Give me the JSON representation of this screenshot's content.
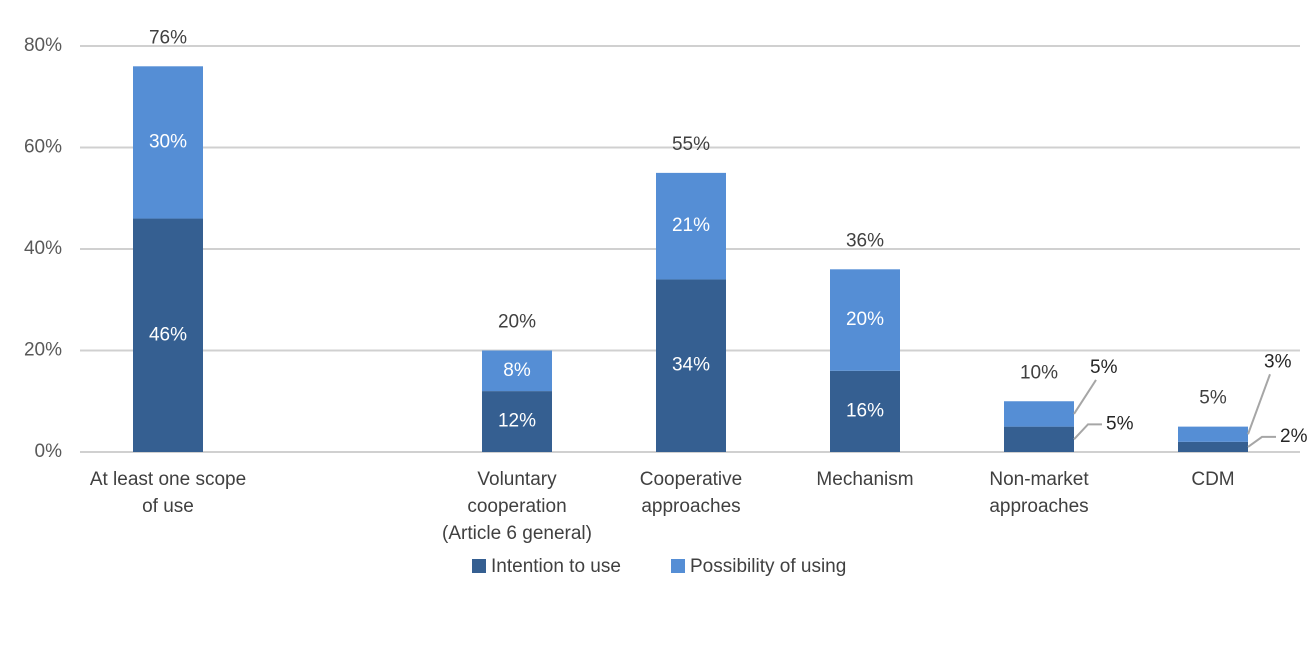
{
  "chart_data": {
    "type": "bar",
    "stacked": true,
    "categories": [
      [
        "At least one scope",
        "of use"
      ],
      [
        "Voluntary",
        "cooperation",
        "(Article 6 general)"
      ],
      [
        "Cooperative",
        "approaches"
      ],
      [
        "Mechanism"
      ],
      [
        "Non-market",
        "approaches"
      ],
      [
        "CDM"
      ]
    ],
    "series": [
      {
        "name": "Intention to use",
        "color": "#355F91",
        "values": [
          46,
          12,
          34,
          16,
          5,
          2
        ],
        "labels": [
          "46%",
          "12%",
          "34%",
          "16%",
          "5%",
          "2%"
        ]
      },
      {
        "name": "Possibility of using",
        "color": "#558ED5",
        "values": [
          30,
          8,
          21,
          20,
          5,
          3
        ],
        "labels": [
          "30%",
          "8%",
          "21%",
          "20%",
          "5%",
          "3%"
        ]
      }
    ],
    "totals": [
      "76%",
      "20%",
      "55%",
      "36%",
      "10%",
      "5%"
    ],
    "ylim": [
      0,
      80
    ],
    "yticks": [
      0,
      20,
      40,
      60,
      80
    ],
    "ytick_labels": [
      "0%",
      "20%",
      "40%",
      "60%",
      "80%"
    ],
    "grid": true,
    "legend_position": "bottom",
    "xlabel": "",
    "ylabel": "",
    "title": ""
  }
}
